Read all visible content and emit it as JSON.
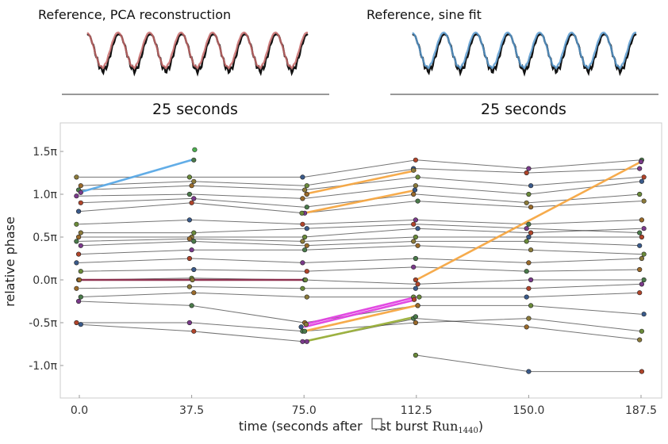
{
  "insets": [
    {
      "title": "Reference, PCA reconstruction",
      "scale_label": "25 seconds",
      "reference_color": "#111111",
      "fit_color": "#c76b6b",
      "cycles": 7
    },
    {
      "title": "Reference, sine fit",
      "scale_label": "25 seconds",
      "reference_color": "#111111",
      "fit_color": "#5b9bd0",
      "cycles": 7
    }
  ],
  "chart_data": {
    "type": "line",
    "xlabel_prefix": "time (seconds after ",
    "xlabel_obscured": "fi",
    "xlabel_middle": "rst burst ",
    "xlabel_run": "Run",
    "xlabel_subscript": "1440",
    "xlabel_suffix": ")",
    "ylabel": "relative phase",
    "x_ticks": [
      0.0,
      37.5,
      75.0,
      112.5,
      150.0,
      187.5
    ],
    "x_tick_labels": [
      "0.0",
      "37.5",
      "75.0",
      "112.5",
      "150.0",
      "187.5"
    ],
    "y_ticks": [
      1.5,
      1.0,
      0.5,
      0.0,
      -0.5,
      -1.0
    ],
    "y_tick_labels": [
      "1.5π",
      "1.0π",
      "0.5π",
      "0.0π",
      "-0.5π",
      "-1.0π"
    ],
    "xlim": [
      -5,
      191
    ],
    "ylim": [
      -1.35,
      1.85
    ],
    "background_line_color": "#000000",
    "background_lines": [
      [
        [
          0,
          1.2
        ],
        [
          37.5,
          1.2
        ],
        [
          75,
          1.2
        ],
        [
          112.5,
          1.4
        ],
        [
          150,
          1.3
        ],
        [
          187.5,
          1.4
        ]
      ],
      [
        [
          0,
          1.1
        ],
        [
          37.5,
          1.15
        ],
        [
          75,
          1.1
        ],
        [
          112.5,
          1.3
        ],
        [
          150,
          1.25
        ],
        [
          187.5,
          1.3
        ]
      ],
      [
        [
          0,
          1.05
        ],
        [
          37.5,
          1.1
        ],
        [
          75,
          1.05
        ],
        [
          112.5,
          1.2
        ],
        [
          150,
          1.1
        ],
        [
          187.5,
          1.2
        ]
      ],
      [
        [
          0,
          0.98
        ],
        [
          37.5,
          1.0
        ],
        [
          75,
          0.95
        ],
        [
          112.5,
          1.1
        ],
        [
          150,
          1.0
        ],
        [
          187.5,
          1.15
        ]
      ],
      [
        [
          0,
          0.9
        ],
        [
          37.5,
          0.95
        ],
        [
          75,
          0.85
        ],
        [
          112.5,
          1.0
        ],
        [
          150,
          0.9
        ],
        [
          187.5,
          1.0
        ]
      ],
      [
        [
          0,
          0.8
        ],
        [
          37.5,
          0.9
        ],
        [
          75,
          0.78
        ],
        [
          112.5,
          0.92
        ],
        [
          150,
          0.85
        ],
        [
          187.5,
          0.92
        ]
      ],
      [
        [
          0,
          0.65
        ],
        [
          37.5,
          0.7
        ],
        [
          75,
          0.65
        ],
        [
          112.5,
          0.7
        ],
        [
          150,
          0.65
        ],
        [
          187.5,
          0.7
        ]
      ],
      [
        [
          0,
          0.55
        ],
        [
          37.5,
          0.55
        ],
        [
          75,
          0.6
        ],
        [
          112.5,
          0.65
        ],
        [
          150,
          0.6
        ],
        [
          187.5,
          0.55
        ]
      ],
      [
        [
          0,
          0.5
        ],
        [
          37.5,
          0.5
        ],
        [
          75,
          0.5
        ],
        [
          112.5,
          0.6
        ],
        [
          150,
          0.55
        ],
        [
          187.5,
          0.6
        ]
      ],
      [
        [
          0,
          0.45
        ],
        [
          37.5,
          0.48
        ],
        [
          75,
          0.45
        ],
        [
          112.5,
          0.5
        ],
        [
          150,
          0.5
        ],
        [
          187.5,
          0.5
        ]
      ],
      [
        [
          0,
          0.4
        ],
        [
          37.5,
          0.45
        ],
        [
          75,
          0.4
        ],
        [
          112.5,
          0.45
        ],
        [
          150,
          0.45
        ],
        [
          187.5,
          0.4
        ]
      ],
      [
        [
          0,
          0.3
        ],
        [
          37.5,
          0.35
        ],
        [
          75,
          0.35
        ],
        [
          112.5,
          0.4
        ],
        [
          150,
          0.35
        ],
        [
          187.5,
          0.3
        ]
      ],
      [
        [
          0,
          0.2
        ],
        [
          37.5,
          0.25
        ],
        [
          75,
          0.2
        ],
        [
          112.5,
          0.25
        ],
        [
          150,
          0.2
        ],
        [
          187.5,
          0.25
        ]
      ],
      [
        [
          0,
          0.1
        ],
        [
          37.5,
          0.12
        ],
        [
          75,
          0.1
        ],
        [
          112.5,
          0.15
        ],
        [
          150,
          0.1
        ],
        [
          187.5,
          0.12
        ]
      ],
      [
        [
          0,
          0.0
        ],
        [
          37.5,
          0.02
        ],
        [
          75,
          0.0
        ],
        [
          112.5,
          -0.05
        ],
        [
          150,
          0.0
        ],
        [
          187.5,
          0.0
        ]
      ],
      [
        [
          0,
          -0.1
        ],
        [
          37.5,
          -0.08
        ],
        [
          75,
          -0.1
        ],
        [
          112.5,
          -0.1
        ],
        [
          150,
          -0.1
        ],
        [
          187.5,
          -0.05
        ]
      ],
      [
        [
          0,
          -0.2
        ],
        [
          37.5,
          -0.15
        ],
        [
          75,
          -0.2
        ],
        [
          112.5,
          -0.2
        ],
        [
          150,
          -0.2
        ],
        [
          187.5,
          -0.15
        ]
      ],
      [
        [
          0,
          -0.25
        ],
        [
          37.5,
          -0.3
        ],
        [
          75,
          -0.5
        ],
        [
          112.5,
          -0.3
        ],
        [
          150,
          -0.3
        ],
        [
          187.5,
          -0.4
        ]
      ],
      [
        [
          0,
          -0.5
        ],
        [
          37.5,
          -0.5
        ],
        [
          75,
          -0.6
        ],
        [
          112.5,
          -0.5
        ],
        [
          150,
          -0.45
        ],
        [
          187.5,
          -0.6
        ]
      ],
      [
        [
          0,
          -0.52
        ],
        [
          37.5,
          -0.6
        ],
        [
          75,
          -0.72
        ],
        [
          112.5,
          -0.45
        ],
        [
          150,
          -0.55
        ],
        [
          187.5,
          -0.7
        ]
      ],
      [
        [
          112.5,
          -0.88
        ],
        [
          150,
          -1.07
        ],
        [
          187.5,
          -1.07
        ]
      ]
    ],
    "highlighted_segments": [
      {
        "color": "#5aa9e6",
        "points": [
          [
            0,
            1.02
          ],
          [
            37.5,
            1.4
          ]
        ]
      },
      {
        "color": "#f5a742",
        "points": [
          [
            75,
            1.0
          ],
          [
            112.5,
            1.28
          ]
        ]
      },
      {
        "color": "#f5a742",
        "points": [
          [
            75,
            0.78
          ],
          [
            112.5,
            1.05
          ]
        ]
      },
      {
        "color": "#f5a742",
        "points": [
          [
            112.5,
            0.0
          ],
          [
            187.5,
            1.38
          ]
        ]
      },
      {
        "color": "#f5a742",
        "points": [
          [
            75,
            -0.6
          ],
          [
            112.5,
            -0.3
          ]
        ]
      },
      {
        "color": "#e040e0",
        "points": [
          [
            75,
            -0.52
          ],
          [
            112.5,
            -0.2
          ]
        ]
      },
      {
        "color": "#e040e0",
        "points": [
          [
            75,
            -0.55
          ],
          [
            112.5,
            -0.23
          ]
        ]
      },
      {
        "color": "#9ab03a",
        "points": [
          [
            75,
            -0.72
          ],
          [
            112.5,
            -0.43
          ]
        ]
      },
      {
        "color": "#8b2a4a",
        "points": [
          [
            0,
            0.0
          ],
          [
            37.5,
            0.0
          ],
          [
            75,
            0.0
          ]
        ]
      }
    ],
    "extra_points": [
      {
        "x": 38.5,
        "y": 1.52,
        "color": "#4caf50"
      }
    ],
    "marker_palette": [
      "#8b7a3a",
      "#6a8a3a",
      "#3a5a8a",
      "#b0442a",
      "#7a3a8a",
      "#4a7a4a",
      "#9a6a2a"
    ]
  }
}
